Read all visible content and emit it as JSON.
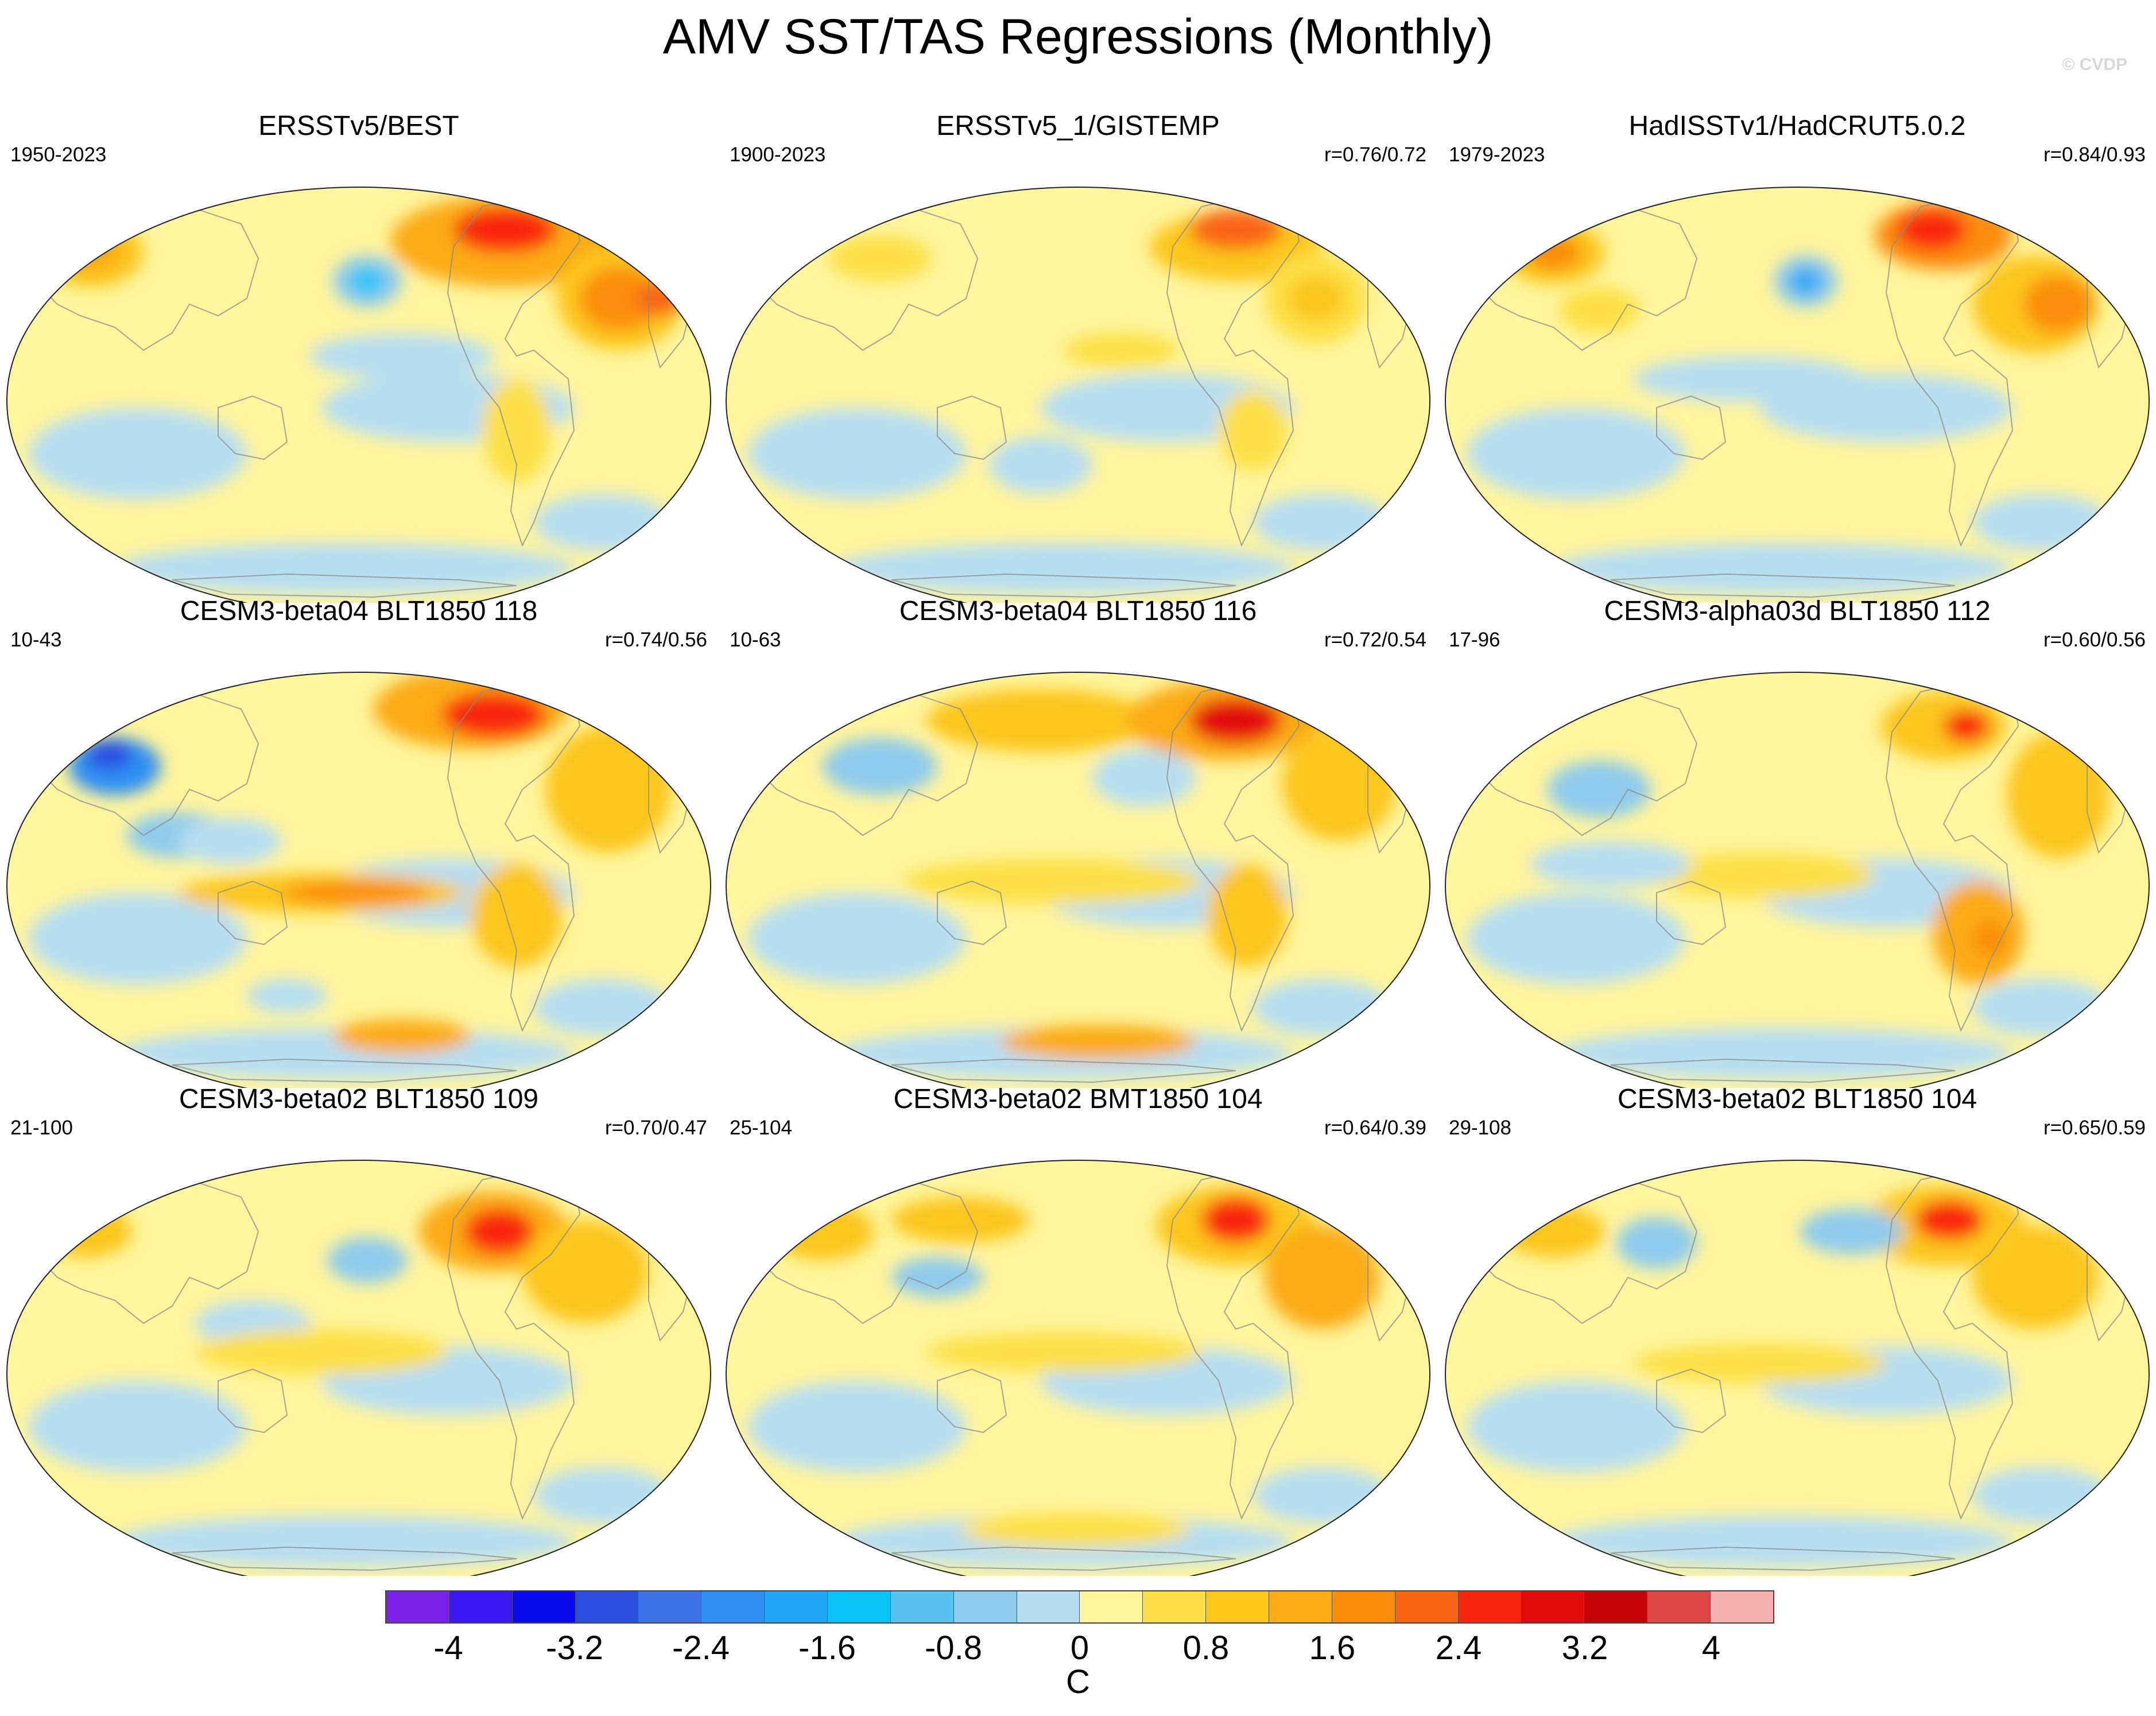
{
  "title": "AMV SST/TAS Regressions (Monthly)",
  "watermark": "© CVDP",
  "panels": [
    {
      "title": "ERSSTv5/BEST",
      "years": "1950-2023",
      "r": "",
      "variant": 0
    },
    {
      "title": "ERSSTv5_1/GISTEMP",
      "years": "1900-2023",
      "r": "r=0.76/0.72",
      "variant": 1
    },
    {
      "title": "HadISSTv1/HadCRUT5.0.2",
      "years": "1979-2023",
      "r": "r=0.84/0.93",
      "variant": 2
    },
    {
      "title": "CESM3-beta04 BLT1850 118",
      "years": "10-43",
      "r": "r=0.74/0.56",
      "variant": 3
    },
    {
      "title": "CESM3-beta04 BLT1850 116",
      "years": "10-63",
      "r": "r=0.72/0.54",
      "variant": 4
    },
    {
      "title": "CESM3-alpha03d BLT1850 112",
      "years": "17-96",
      "r": "r=0.60/0.56",
      "variant": 5
    },
    {
      "title": "CESM3-beta02 BLT1850 109",
      "years": "21-100",
      "r": "r=0.70/0.47",
      "variant": 6
    },
    {
      "title": "CESM3-beta02 BMT1850 104",
      "years": "25-104",
      "r": "r=0.64/0.39",
      "variant": 7
    },
    {
      "title": "CESM3-beta02 BLT1850 104",
      "years": "29-108",
      "r": "r=0.65/0.59",
      "variant": 8
    }
  ],
  "colorbar": {
    "colors": [
      "#7b22e8",
      "#3a16f0",
      "#0b0bf0",
      "#2a4ee0",
      "#3d73e6",
      "#2f8ff2",
      "#1fa6f5",
      "#0cc3f7",
      "#59c2f0",
      "#8ecbed",
      "#b8def2",
      "#fff59d",
      "#fde047",
      "#fcc61a",
      "#fbab16",
      "#fb8c0a",
      "#f96412",
      "#f9250c",
      "#e30a0a",
      "#c40606",
      "#dd4444",
      "#f6b2b2"
    ],
    "tick_labels": [
      "-4",
      "-3.2",
      "-2.4",
      "-1.6",
      "-0.8",
      "0",
      "0.8",
      "1.6",
      "2.4",
      "3.2",
      "4"
    ],
    "unit": "C"
  }
}
